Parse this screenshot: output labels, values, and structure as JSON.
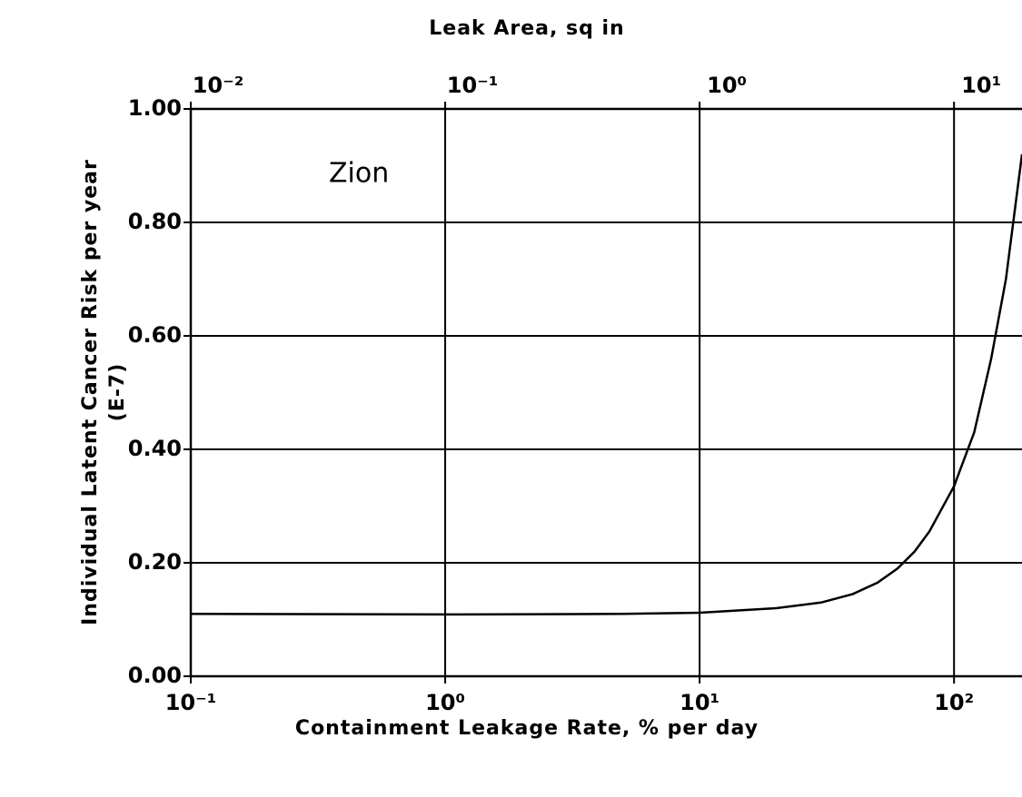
{
  "chart_data": {
    "type": "line",
    "title_top": "Leak Area, sq in",
    "xlabel": "Containment Leakage Rate, % per day",
    "ylabel": [
      "Individual Latent Cancer Risk per year",
      "(E-7)"
    ],
    "annotation": "Zion",
    "xscale": "log",
    "xlim": [
      0.1,
      185
    ],
    "xticks": [
      {
        "value": 0.1,
        "label": "10⁻¹"
      },
      {
        "value": 1,
        "label": "10⁰"
      },
      {
        "value": 10,
        "label": "10¹"
      },
      {
        "value": 100,
        "label": "10²"
      }
    ],
    "x2lim": [
      0.01,
      18.5
    ],
    "x2ticks": [
      {
        "value": 0.01,
        "label": "10⁻²"
      },
      {
        "value": 0.1,
        "label": "10⁻¹"
      },
      {
        "value": 1,
        "label": "10⁰"
      },
      {
        "value": 10,
        "label": "10¹"
      }
    ],
    "ylim": [
      0,
      1
    ],
    "yticks": [
      {
        "value": 0,
        "label": "0.00"
      },
      {
        "value": 0.2,
        "label": "0.20"
      },
      {
        "value": 0.4,
        "label": "0.40"
      },
      {
        "value": 0.6,
        "label": "0.60"
      },
      {
        "value": 0.8,
        "label": "0.80"
      },
      {
        "value": 1,
        "label": "1.00"
      }
    ],
    "grid": true,
    "color": "#000000",
    "x": [
      0.1,
      1,
      5,
      10,
      20,
      30,
      40,
      50,
      60,
      70,
      80,
      100,
      120,
      140,
      160,
      185
    ],
    "values": [
      0.11,
      0.109,
      0.11,
      0.112,
      0.12,
      0.13,
      0.145,
      0.165,
      0.19,
      0.22,
      0.255,
      0.335,
      0.43,
      0.56,
      0.7,
      0.92
    ]
  }
}
